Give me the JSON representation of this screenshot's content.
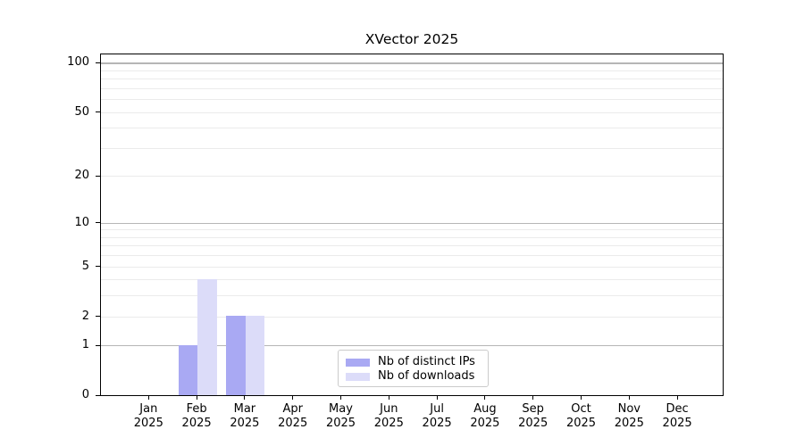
{
  "title": "XVector 2025",
  "chart_data": {
    "type": "bar",
    "title": "XVector 2025",
    "xlabel": "",
    "ylabel": "",
    "categories": [
      "Jan",
      "Feb",
      "Mar",
      "Apr",
      "May",
      "Jun",
      "Jul",
      "Aug",
      "Sep",
      "Oct",
      "Nov",
      "Dec"
    ],
    "category_year": "2025",
    "series": [
      {
        "name": "Nb of distinct IPs",
        "color": "#a9a9f3",
        "values": [
          0,
          1,
          2,
          0,
          0,
          0,
          0,
          0,
          0,
          0,
          0,
          0
        ]
      },
      {
        "name": "Nb of downloads",
        "color": "#dcdcf9",
        "values": [
          0,
          4,
          2,
          0,
          0,
          0,
          0,
          0,
          0,
          0,
          0,
          0
        ]
      }
    ],
    "yscale": "log10(1+x)",
    "yticks": [
      0,
      1,
      2,
      5,
      10,
      20,
      50,
      100
    ],
    "major_gridlines": [
      1,
      10,
      100
    ],
    "minor_gridlines": [
      2,
      3,
      4,
      5,
      6,
      7,
      8,
      9,
      20,
      30,
      40,
      50,
      60,
      70,
      80,
      90
    ],
    "ylim": [
      0,
      113
    ],
    "grid": true,
    "legend_position": "lower center"
  },
  "colors": {
    "background": "#ffffff",
    "axis": "#000000",
    "text": "#000000",
    "major_grid": "#b6b6b6",
    "minor_grid": "#ebebeb",
    "legend_border": "#cbcbcb"
  }
}
